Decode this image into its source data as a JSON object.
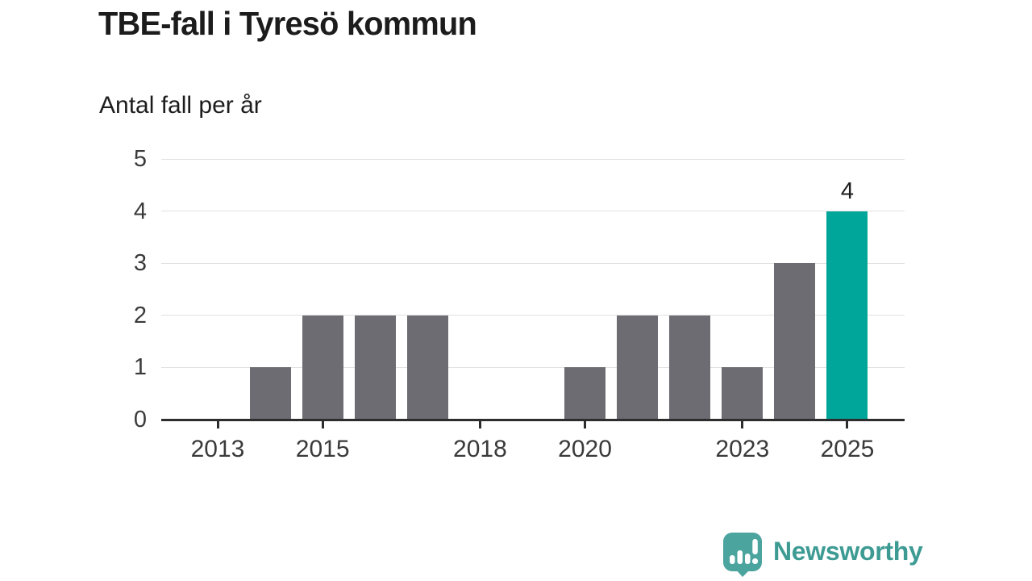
{
  "page": {
    "title": "TBE-fall i Tyresö kommun",
    "subtitle": "Antal fall per år"
  },
  "chart_data": {
    "type": "bar",
    "title": "TBE-fall i Tyresö kommun",
    "subtitle": "Antal fall per år",
    "categories": [
      2013,
      2014,
      2015,
      2016,
      2017,
      2018,
      2019,
      2020,
      2021,
      2022,
      2023,
      2024,
      2025
    ],
    "values": [
      0,
      1,
      2,
      2,
      2,
      0,
      0,
      1,
      2,
      2,
      1,
      3,
      4
    ],
    "xlabel": "",
    "ylabel": "Antal fall per år",
    "ylim": [
      0,
      5
    ],
    "y_ticks": [
      0,
      1,
      2,
      3,
      4,
      5
    ],
    "x_tick_labels": [
      "2013",
      "2015",
      "2018",
      "2020",
      "2023",
      "2025"
    ],
    "grid": true,
    "legend": false,
    "annotation": {
      "category": 2025,
      "text": "4"
    },
    "highlight": {
      "category": 2025,
      "color": "#00a69a"
    },
    "bar_color": "#6d6c72",
    "grid_color": "#e1e1e1",
    "axis_color": "#2d2d2d",
    "tick_label_color": "#3a3a3a"
  },
  "footer": {
    "brand": "Newsworthy",
    "brand_color": "#3d9b94",
    "logo_icon": "bar-chart-speech-bubble",
    "logo_color": "#4ba49e"
  }
}
